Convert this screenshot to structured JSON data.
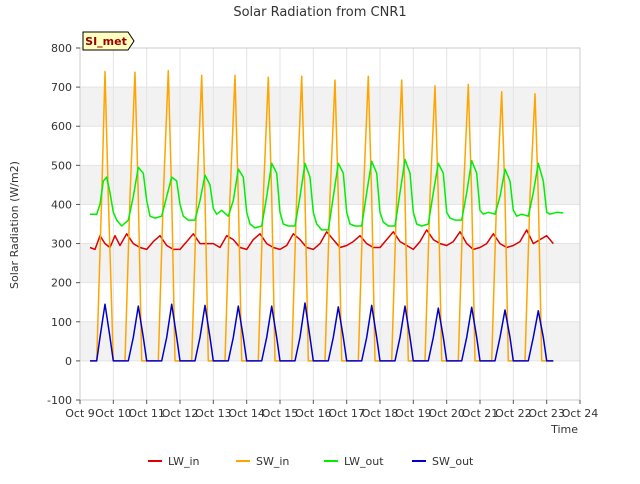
{
  "chart_data": {
    "type": "line",
    "title": "Solar Radiation from CNR1",
    "xlabel": "Time",
    "ylabel": "Solar Radiation (W/m2)",
    "site_badge": "SI_met",
    "ylim": [
      -100,
      800
    ],
    "yticks": [
      -100,
      0,
      100,
      200,
      300,
      400,
      500,
      600,
      700,
      800
    ],
    "xlim": [
      0,
      15
    ],
    "xticks": [
      {
        "x": 0,
        "label": "Oct 9"
      },
      {
        "x": 1,
        "label": "Oct 10"
      },
      {
        "x": 2,
        "label": "Oct 11"
      },
      {
        "x": 3,
        "label": "Oct 12"
      },
      {
        "x": 4,
        "label": "Oct 13"
      },
      {
        "x": 5,
        "label": "Oct 14"
      },
      {
        "x": 6,
        "label": "Oct 15"
      },
      {
        "x": 7,
        "label": "Oct 16"
      },
      {
        "x": 8,
        "label": "Oct 17"
      },
      {
        "x": 9,
        "label": "Oct 18"
      },
      {
        "x": 10,
        "label": "Oct 19"
      },
      {
        "x": 11,
        "label": "Oct 20"
      },
      {
        "x": 12,
        "label": "Oct 21"
      },
      {
        "x": 13,
        "label": "Oct 22"
      },
      {
        "x": 14,
        "label": "Oct 23"
      },
      {
        "x": 15,
        "label": "Oct 24"
      }
    ],
    "grid": true,
    "legend_position": "bottom",
    "series": [
      {
        "name": "LW_in",
        "color": "#dd0000",
        "x": [
          0.3,
          0.45,
          0.6,
          0.75,
          0.9,
          1.05,
          1.2,
          1.4,
          1.6,
          1.8,
          2.0,
          2.2,
          2.4,
          2.6,
          2.8,
          3.0,
          3.2,
          3.4,
          3.6,
          3.8,
          4.0,
          4.2,
          4.4,
          4.6,
          4.8,
          5.0,
          5.2,
          5.4,
          5.6,
          5.8,
          6.0,
          6.2,
          6.4,
          6.6,
          6.8,
          7.0,
          7.2,
          7.4,
          7.6,
          7.8,
          8.0,
          8.2,
          8.4,
          8.6,
          8.8,
          9.0,
          9.2,
          9.4,
          9.6,
          9.8,
          10.0,
          10.2,
          10.4,
          10.6,
          10.8,
          11.0,
          11.2,
          11.4,
          11.6,
          11.8,
          12.0,
          12.2,
          12.4,
          12.6,
          12.8,
          13.0,
          13.2,
          13.4,
          13.6,
          13.8,
          14.0,
          14.2
        ],
        "values": [
          290,
          285,
          320,
          300,
          290,
          320,
          295,
          325,
          300,
          290,
          285,
          305,
          320,
          295,
          285,
          285,
          305,
          325,
          300,
          300,
          300,
          290,
          320,
          310,
          290,
          285,
          310,
          325,
          300,
          290,
          285,
          295,
          325,
          310,
          290,
          285,
          300,
          330,
          310,
          290,
          295,
          305,
          320,
          300,
          290,
          290,
          310,
          330,
          305,
          295,
          285,
          305,
          335,
          310,
          300,
          295,
          305,
          330,
          300,
          285,
          290,
          300,
          325,
          300,
          290,
          295,
          305,
          335,
          300,
          310,
          320,
          300
        ]
      },
      {
        "name": "SW_in",
        "color": "#ffa500",
        "x": [
          0.3,
          0.5,
          0.65,
          0.75,
          0.85,
          1.0,
          1.2,
          1.35,
          1.5,
          1.65,
          1.75,
          1.85,
          2.0,
          2.2,
          2.35,
          2.5,
          2.65,
          2.75,
          2.85,
          3.0,
          3.2,
          3.35,
          3.5,
          3.65,
          3.75,
          3.85,
          4.0,
          4.2,
          4.35,
          4.5,
          4.65,
          4.75,
          4.85,
          5.0,
          5.2,
          5.35,
          5.5,
          5.65,
          5.75,
          5.85,
          6.0,
          6.2,
          6.35,
          6.5,
          6.65,
          6.75,
          6.85,
          7.0,
          7.2,
          7.35,
          7.5,
          7.65,
          7.75,
          7.85,
          8.0,
          8.2,
          8.35,
          8.5,
          8.65,
          8.75,
          8.85,
          9.0,
          9.2,
          9.35,
          9.5,
          9.65,
          9.75,
          9.85,
          10.0,
          10.2,
          10.35,
          10.5,
          10.65,
          10.75,
          10.85,
          11.0,
          11.2,
          11.35,
          11.5,
          11.65,
          11.75,
          11.85,
          12.0,
          12.2,
          12.35,
          12.5,
          12.65,
          12.75,
          12.85,
          13.0,
          13.2,
          13.35,
          13.5,
          13.65,
          13.75,
          13.85,
          14.0,
          14.2
        ],
        "values": [
          0,
          0,
          420,
          740,
          420,
          0,
          0,
          0,
          420,
          738,
          420,
          0,
          0,
          0,
          0,
          420,
          742,
          420,
          0,
          0,
          0,
          0,
          420,
          730,
          420,
          0,
          0,
          0,
          0,
          420,
          730,
          420,
          0,
          0,
          0,
          0,
          420,
          725,
          420,
          0,
          0,
          0,
          0,
          420,
          728,
          420,
          0,
          0,
          0,
          0,
          420,
          718,
          420,
          0,
          0,
          0,
          0,
          420,
          728,
          420,
          0,
          0,
          0,
          0,
          420,
          718,
          420,
          0,
          0,
          0,
          0,
          420,
          703,
          420,
          0,
          0,
          0,
          0,
          420,
          707,
          420,
          0,
          0,
          0,
          0,
          420,
          688,
          420,
          0,
          0,
          0,
          0,
          420,
          683,
          420,
          0,
          0,
          0
        ]
      },
      {
        "name": "LW_out",
        "color": "#00ee00",
        "x": [
          0.3,
          0.5,
          0.6,
          0.7,
          0.8,
          0.9,
          1.0,
          1.1,
          1.25,
          1.45,
          1.6,
          1.75,
          1.9,
          2.0,
          2.1,
          2.25,
          2.45,
          2.6,
          2.75,
          2.9,
          3.0,
          3.1,
          3.25,
          3.45,
          3.6,
          3.75,
          3.9,
          4.0,
          4.1,
          4.25,
          4.45,
          4.6,
          4.75,
          4.9,
          5.0,
          5.1,
          5.25,
          5.45,
          5.6,
          5.75,
          5.9,
          6.0,
          6.1,
          6.25,
          6.45,
          6.6,
          6.75,
          6.9,
          7.0,
          7.1,
          7.25,
          7.45,
          7.6,
          7.75,
          7.9,
          8.0,
          8.1,
          8.25,
          8.45,
          8.6,
          8.75,
          8.9,
          9.0,
          9.1,
          9.25,
          9.45,
          9.6,
          9.75,
          9.9,
          10.0,
          10.1,
          10.25,
          10.45,
          10.6,
          10.75,
          10.9,
          11.0,
          11.1,
          11.25,
          11.45,
          11.6,
          11.75,
          11.9,
          12.0,
          12.1,
          12.25,
          12.45,
          12.6,
          12.75,
          12.9,
          13.0,
          13.1,
          13.25,
          13.45,
          13.6,
          13.75,
          13.9,
          14.0,
          14.1,
          14.3,
          14.5
        ],
        "values": [
          375,
          375,
          400,
          460,
          470,
          430,
          380,
          360,
          345,
          360,
          420,
          495,
          480,
          410,
          370,
          365,
          370,
          420,
          470,
          460,
          400,
          370,
          360,
          360,
          410,
          475,
          450,
          390,
          375,
          385,
          370,
          410,
          490,
          470,
          380,
          350,
          340,
          345,
          420,
          505,
          480,
          380,
          350,
          345,
          345,
          420,
          505,
          470,
          380,
          350,
          335,
          335,
          420,
          505,
          480,
          380,
          350,
          345,
          345,
          430,
          510,
          480,
          380,
          355,
          345,
          345,
          430,
          515,
          480,
          380,
          350,
          345,
          350,
          430,
          505,
          480,
          380,
          365,
          360,
          360,
          430,
          512,
          480,
          385,
          375,
          380,
          375,
          420,
          490,
          460,
          385,
          370,
          375,
          370,
          430,
          505,
          460,
          380,
          375,
          380,
          378
        ]
      },
      {
        "name": "SW_out",
        "color": "#0000cc",
        "x": [
          0.3,
          0.5,
          0.6,
          0.75,
          0.9,
          1.0,
          1.2,
          1.45,
          1.6,
          1.75,
          1.9,
          2.0,
          2.2,
          2.45,
          2.6,
          2.75,
          2.9,
          3.0,
          3.2,
          3.45,
          3.6,
          3.75,
          3.9,
          4.0,
          4.2,
          4.45,
          4.6,
          4.75,
          4.9,
          5.0,
          5.2,
          5.45,
          5.6,
          5.75,
          5.9,
          6.0,
          6.2,
          6.45,
          6.6,
          6.75,
          6.9,
          7.0,
          7.2,
          7.45,
          7.6,
          7.75,
          7.9,
          8.0,
          8.2,
          8.45,
          8.6,
          8.75,
          8.9,
          9.0,
          9.2,
          9.45,
          9.6,
          9.75,
          9.9,
          10.0,
          10.2,
          10.45,
          10.6,
          10.75,
          10.9,
          11.0,
          11.2,
          11.45,
          11.6,
          11.75,
          11.9,
          12.0,
          12.2,
          12.45,
          12.6,
          12.75,
          12.9,
          13.0,
          13.2,
          13.45,
          13.6,
          13.75,
          13.9,
          14.0,
          14.2
        ],
        "values": [
          0,
          0,
          60,
          145,
          60,
          0,
          0,
          0,
          60,
          140,
          60,
          0,
          0,
          0,
          60,
          145,
          60,
          0,
          0,
          0,
          60,
          142,
          60,
          0,
          0,
          0,
          60,
          140,
          60,
          0,
          0,
          0,
          60,
          140,
          60,
          0,
          0,
          0,
          60,
          148,
          60,
          0,
          0,
          0,
          60,
          138,
          60,
          0,
          0,
          0,
          60,
          142,
          60,
          0,
          0,
          0,
          60,
          140,
          60,
          0,
          0,
          0,
          60,
          135,
          60,
          0,
          0,
          0,
          60,
          137,
          60,
          0,
          0,
          0,
          60,
          130,
          60,
          0,
          0,
          0,
          60,
          128,
          60,
          0,
          0
        ]
      }
    ]
  }
}
